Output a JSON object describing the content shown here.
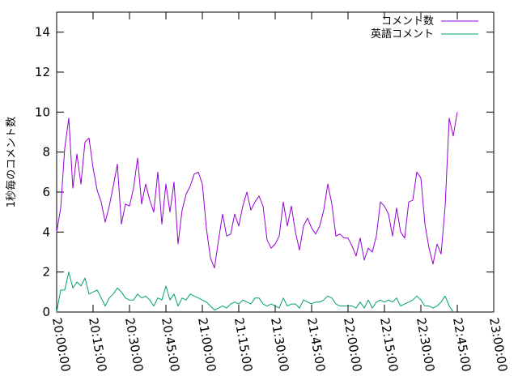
{
  "chart_data": {
    "type": "line",
    "title": "",
    "xlabel": "",
    "ylabel": "1秒毎のコメント数",
    "xlim": [
      "20:00:00",
      "23:00:00"
    ],
    "ylim": [
      0,
      15
    ],
    "xticks": [
      "20:00:00",
      "20:15:00",
      "20:30:00",
      "20:45:00",
      "21:00:00",
      "21:15:00",
      "21:30:00",
      "21:45:00",
      "22:00:00",
      "22:15:00",
      "22:30:00",
      "22:45:00",
      "23:00:00"
    ],
    "yticks": [
      "0",
      "2",
      "4",
      "6",
      "8",
      "10",
      "12",
      "14"
    ],
    "legend_position": "top-right",
    "grid": false,
    "colors": {
      "コメント数": "#9400d3",
      "英語コメント": "#009e73"
    },
    "series": [
      {
        "name": "コメント数",
        "points": [
          [
            "20:00:00",
            4.0
          ],
          [
            "20:01:40",
            5.2
          ],
          [
            "20:03:20",
            8.2
          ],
          [
            "20:05:00",
            9.7
          ],
          [
            "20:06:40",
            6.2
          ],
          [
            "20:08:20",
            7.9
          ],
          [
            "20:10:00",
            6.4
          ],
          [
            "20:11:40",
            8.5
          ],
          [
            "20:13:20",
            8.7
          ],
          [
            "20:15:00",
            7.2
          ],
          [
            "20:16:40",
            6.1
          ],
          [
            "20:18:20",
            5.5
          ],
          [
            "20:20:00",
            4.5
          ],
          [
            "20:21:40",
            5.3
          ],
          [
            "20:23:20",
            6.3
          ],
          [
            "20:25:00",
            7.4
          ],
          [
            "20:26:40",
            4.4
          ],
          [
            "20:28:20",
            5.4
          ],
          [
            "20:30:00",
            5.3
          ],
          [
            "20:31:40",
            6.2
          ],
          [
            "20:33:20",
            7.7
          ],
          [
            "20:35:00",
            5.4
          ],
          [
            "20:36:40",
            6.4
          ],
          [
            "20:38:20",
            5.6
          ],
          [
            "20:40:00",
            5.0
          ],
          [
            "20:41:40",
            7.0
          ],
          [
            "20:43:20",
            4.4
          ],
          [
            "20:45:00",
            6.4
          ],
          [
            "20:46:40",
            5.0
          ],
          [
            "20:48:20",
            6.5
          ],
          [
            "20:50:00",
            3.4
          ],
          [
            "20:51:40",
            5.1
          ],
          [
            "20:53:20",
            5.9
          ],
          [
            "20:55:00",
            6.3
          ],
          [
            "20:56:40",
            6.9
          ],
          [
            "20:58:20",
            7.0
          ],
          [
            "21:00:00",
            6.4
          ],
          [
            "21:01:40",
            4.2
          ],
          [
            "21:03:20",
            2.7
          ],
          [
            "21:05:00",
            2.2
          ],
          [
            "21:06:40",
            3.6
          ],
          [
            "21:08:20",
            4.9
          ],
          [
            "21:10:00",
            3.8
          ],
          [
            "21:11:40",
            3.9
          ],
          [
            "21:13:20",
            4.9
          ],
          [
            "21:15:00",
            4.3
          ],
          [
            "21:16:40",
            5.3
          ],
          [
            "21:18:20",
            6.0
          ],
          [
            "21:20:00",
            5.1
          ],
          [
            "21:21:40",
            5.5
          ],
          [
            "21:23:20",
            5.8
          ],
          [
            "21:25:00",
            5.3
          ],
          [
            "21:26:40",
            3.6
          ],
          [
            "21:28:20",
            3.2
          ],
          [
            "21:30:00",
            3.4
          ],
          [
            "21:31:40",
            3.8
          ],
          [
            "21:33:20",
            5.5
          ],
          [
            "21:35:00",
            4.3
          ],
          [
            "21:36:40",
            5.3
          ],
          [
            "21:38:20",
            4.0
          ],
          [
            "21:40:00",
            3.1
          ],
          [
            "21:41:40",
            4.3
          ],
          [
            "21:43:20",
            4.7
          ],
          [
            "21:45:00",
            4.2
          ],
          [
            "21:46:40",
            3.9
          ],
          [
            "21:48:20",
            4.3
          ],
          [
            "21:50:00",
            5.1
          ],
          [
            "21:51:40",
            6.4
          ],
          [
            "21:53:20",
            5.4
          ],
          [
            "21:55:00",
            3.8
          ],
          [
            "21:56:40",
            3.9
          ],
          [
            "21:58:20",
            3.7
          ],
          [
            "22:00:00",
            3.7
          ],
          [
            "22:01:40",
            3.3
          ],
          [
            "22:03:20",
            2.8
          ],
          [
            "22:05:00",
            3.7
          ],
          [
            "22:06:40",
            2.6
          ],
          [
            "22:08:20",
            3.2
          ],
          [
            "22:10:00",
            3.0
          ],
          [
            "22:11:40",
            3.8
          ],
          [
            "22:13:20",
            5.5
          ],
          [
            "22:15:00",
            5.3
          ],
          [
            "22:16:40",
            4.9
          ],
          [
            "22:18:20",
            3.8
          ],
          [
            "22:20:00",
            5.2
          ],
          [
            "22:21:40",
            4.0
          ],
          [
            "22:23:20",
            3.7
          ],
          [
            "22:25:00",
            5.5
          ],
          [
            "22:26:40",
            5.6
          ],
          [
            "22:28:20",
            7.0
          ],
          [
            "22:30:00",
            6.7
          ],
          [
            "22:31:40",
            4.4
          ],
          [
            "22:33:20",
            3.2
          ],
          [
            "22:35:00",
            2.4
          ],
          [
            "22:36:40",
            3.4
          ],
          [
            "22:38:20",
            2.9
          ],
          [
            "22:40:00",
            5.3
          ],
          [
            "22:41:40",
            9.7
          ],
          [
            "22:43:20",
            8.8
          ],
          [
            "22:45:00",
            10.0
          ]
        ]
      },
      {
        "name": "英語コメント",
        "points": [
          [
            "20:00:00",
            0.0
          ],
          [
            "20:01:40",
            1.1
          ],
          [
            "20:03:20",
            1.1
          ],
          [
            "20:05:00",
            2.0
          ],
          [
            "20:06:40",
            1.2
          ],
          [
            "20:08:20",
            1.5
          ],
          [
            "20:10:00",
            1.3
          ],
          [
            "20:11:40",
            1.7
          ],
          [
            "20:13:20",
            0.9
          ],
          [
            "20:15:00",
            1.0
          ],
          [
            "20:16:40",
            1.1
          ],
          [
            "20:18:20",
            0.7
          ],
          [
            "20:20:00",
            0.3
          ],
          [
            "20:21:40",
            0.7
          ],
          [
            "20:23:20",
            0.9
          ],
          [
            "20:25:00",
            1.2
          ],
          [
            "20:26:40",
            1.0
          ],
          [
            "20:28:20",
            0.7
          ],
          [
            "20:30:00",
            0.6
          ],
          [
            "20:31:40",
            0.6
          ],
          [
            "20:33:20",
            0.9
          ],
          [
            "20:35:00",
            0.7
          ],
          [
            "20:36:40",
            0.8
          ],
          [
            "20:38:20",
            0.6
          ],
          [
            "20:40:00",
            0.3
          ],
          [
            "20:41:40",
            0.7
          ],
          [
            "20:43:20",
            0.6
          ],
          [
            "20:45:00",
            1.3
          ],
          [
            "20:46:40",
            0.6
          ],
          [
            "20:48:20",
            0.9
          ],
          [
            "20:50:00",
            0.3
          ],
          [
            "20:51:40",
            0.7
          ],
          [
            "20:53:20",
            0.6
          ],
          [
            "20:55:00",
            0.9
          ],
          [
            "20:56:40",
            0.8
          ],
          [
            "20:58:20",
            0.7
          ],
          [
            "21:00:00",
            0.6
          ],
          [
            "21:01:40",
            0.5
          ],
          [
            "21:03:20",
            0.3
          ],
          [
            "21:05:00",
            0.1
          ],
          [
            "21:06:40",
            0.2
          ],
          [
            "21:08:20",
            0.3
          ],
          [
            "21:10:00",
            0.2
          ],
          [
            "21:11:40",
            0.4
          ],
          [
            "21:13:20",
            0.5
          ],
          [
            "21:15:00",
            0.4
          ],
          [
            "21:16:40",
            0.6
          ],
          [
            "21:18:20",
            0.5
          ],
          [
            "21:20:00",
            0.4
          ],
          [
            "21:21:40",
            0.7
          ],
          [
            "21:23:20",
            0.7
          ],
          [
            "21:25:00",
            0.4
          ],
          [
            "21:26:40",
            0.3
          ],
          [
            "21:28:20",
            0.4
          ],
          [
            "21:30:00",
            0.3
          ],
          [
            "21:31:40",
            0.2
          ],
          [
            "21:33:20",
            0.7
          ],
          [
            "21:35:00",
            0.3
          ],
          [
            "21:36:40",
            0.4
          ],
          [
            "21:38:20",
            0.4
          ],
          [
            "21:40:00",
            0.2
          ],
          [
            "21:41:40",
            0.6
          ],
          [
            "21:43:20",
            0.5
          ],
          [
            "21:45:00",
            0.4
          ],
          [
            "21:46:40",
            0.5
          ],
          [
            "21:48:20",
            0.5
          ],
          [
            "21:50:00",
            0.6
          ],
          [
            "21:51:40",
            0.8
          ],
          [
            "21:53:20",
            0.7
          ],
          [
            "21:55:00",
            0.4
          ],
          [
            "21:56:40",
            0.3
          ],
          [
            "21:58:20",
            0.3
          ],
          [
            "22:00:00",
            0.3
          ],
          [
            "22:01:40",
            0.3
          ],
          [
            "22:03:20",
            0.2
          ],
          [
            "22:05:00",
            0.5
          ],
          [
            "22:06:40",
            0.2
          ],
          [
            "22:08:20",
            0.6
          ],
          [
            "22:10:00",
            0.2
          ],
          [
            "22:11:40",
            0.5
          ],
          [
            "22:13:20",
            0.6
          ],
          [
            "22:15:00",
            0.5
          ],
          [
            "22:16:40",
            0.6
          ],
          [
            "22:18:20",
            0.5
          ],
          [
            "22:20:00",
            0.7
          ],
          [
            "22:21:40",
            0.3
          ],
          [
            "22:23:20",
            0.4
          ],
          [
            "22:25:00",
            0.5
          ],
          [
            "22:26:40",
            0.6
          ],
          [
            "22:28:20",
            0.8
          ],
          [
            "22:30:00",
            0.6
          ],
          [
            "22:31:40",
            0.3
          ],
          [
            "22:33:20",
            0.3
          ],
          [
            "22:35:00",
            0.2
          ],
          [
            "22:36:40",
            0.3
          ],
          [
            "22:38:20",
            0.5
          ],
          [
            "22:40:00",
            0.8
          ],
          [
            "22:41:40",
            0.3
          ],
          [
            "22:43:20",
            0.0
          ]
        ]
      }
    ]
  }
}
